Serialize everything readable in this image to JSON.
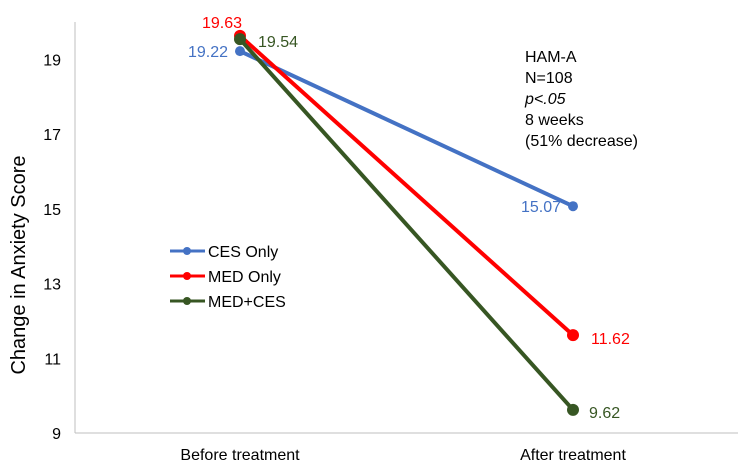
{
  "chart_data": {
    "type": "line",
    "ylabel": "Change in Anxiety Score",
    "categories": [
      "Before treatment",
      "After treatment"
    ],
    "ylim": [
      9,
      20
    ],
    "yticks": [
      9,
      11,
      13,
      15,
      17,
      19
    ],
    "grid": false,
    "legend_position": "center-left",
    "series": [
      {
        "name": "CES Only",
        "values": [
          19.22,
          15.07
        ],
        "labels": [
          "19.22",
          "15.07"
        ],
        "color": "#4472C4"
      },
      {
        "name": "MED Only",
        "values": [
          19.63,
          11.62
        ],
        "labels": [
          "19.63",
          "11.62"
        ],
        "color": "#FF0000"
      },
      {
        "name": "MED+CES",
        "values": [
          19.54,
          9.62
        ],
        "labels": [
          "19.54",
          "9.62"
        ],
        "color": "#375623"
      }
    ],
    "annotation": {
      "lines": [
        "HAM-A",
        "N=108",
        "p<.05",
        "8 weeks",
        "(51% decrease)"
      ]
    }
  }
}
